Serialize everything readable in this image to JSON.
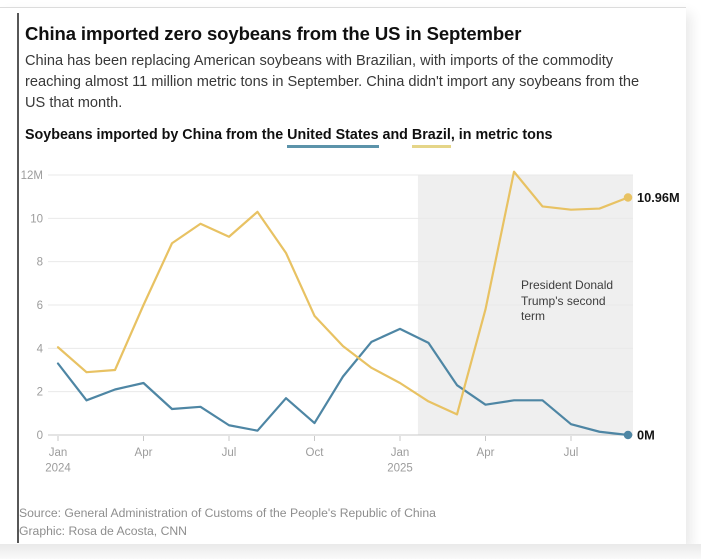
{
  "page": {
    "title": "China imported zero soybeans from the US in September",
    "subtitle": "China has been replacing American soybeans with Brazilian, with imports of the commodity\nreaching almost 11 million metric tons in September. China didn't import any soybeans from the\nUS that month.",
    "chart_heading": {
      "prefix": "Soybeans imported by China from the ",
      "us_label": "United States",
      "mid": " and ",
      "brazil_label": "Brazil",
      "suffix": ", in metric tons"
    },
    "source_line1": "Source: General Administration of Customs of the People's Republic of China",
    "source_line2": "Graphic: Rosa de Acosta, CNN"
  },
  "colors": {
    "us_line": "#4E86A4",
    "brazil_line": "#E8C263",
    "us_underline": "#5C93AA",
    "brazil_underline": "#E5D588",
    "shaded_region": "#efefef",
    "gridline": "#e9e9e9",
    "axis": "#c8c8c8"
  },
  "chart_data": {
    "type": "line",
    "unit": "million metric tons",
    "title": "Soybeans imported by China from the United States and Brazil, in metric tons",
    "x": [
      "Jan 2024",
      "Feb 2024",
      "Mar 2024",
      "Apr 2024",
      "May 2024",
      "Jun 2024",
      "Jul 2024",
      "Aug 2024",
      "Sep 2024",
      "Oct 2024",
      "Nov 2024",
      "Dec 2024",
      "Jan 2025",
      "Feb 2025",
      "Mar 2025",
      "Apr 2025",
      "May 2025",
      "Jun 2025",
      "Jul 2025",
      "Aug 2025",
      "Sep 2025"
    ],
    "ylim": [
      0,
      12
    ],
    "grid": true,
    "legend_position": "inline-in-heading",
    "y_ticks": [
      {
        "v": 0,
        "label": "0"
      },
      {
        "v": 2,
        "label": "2"
      },
      {
        "v": 4,
        "label": "4"
      },
      {
        "v": 6,
        "label": "6"
      },
      {
        "v": 8,
        "label": "8"
      },
      {
        "v": 10,
        "label": "10"
      },
      {
        "v": 12,
        "label": "12M"
      }
    ],
    "x_ticks": [
      {
        "i": 0,
        "line1": "Jan",
        "line2": "2024"
      },
      {
        "i": 3,
        "line1": "Apr"
      },
      {
        "i": 6,
        "line1": "Jul"
      },
      {
        "i": 9,
        "line1": "Oct"
      },
      {
        "i": 12,
        "line1": "Jan",
        "line2": "2025"
      },
      {
        "i": 15,
        "line1": "Apr"
      },
      {
        "i": 18,
        "line1": "Jul"
      }
    ],
    "series": [
      {
        "id": "us",
        "name": "United States",
        "color": "#4E86A4",
        "end_label": "0M",
        "values": [
          3.3,
          1.6,
          2.1,
          2.4,
          1.2,
          1.3,
          0.45,
          0.2,
          1.7,
          0.55,
          2.7,
          4.3,
          4.9,
          4.25,
          2.3,
          1.4,
          1.6,
          1.6,
          0.5,
          0.15,
          0
        ]
      },
      {
        "id": "brazil",
        "name": "Brazil",
        "color": "#E8C263",
        "end_label": "10.96M",
        "values": [
          4.05,
          2.9,
          3.0,
          6.0,
          8.85,
          9.75,
          9.15,
          10.3,
          8.4,
          5.5,
          4.1,
          3.1,
          2.4,
          1.55,
          0.95,
          5.8,
          12.15,
          10.55,
          10.4,
          10.45,
          10.96
        ]
      }
    ],
    "shaded_region": {
      "label": "President Donald Trump's second term",
      "start_x_index": 12.63,
      "color": "#efefef"
    },
    "annotation": {
      "text": "President Donald\nTrump's second\nterm"
    }
  }
}
